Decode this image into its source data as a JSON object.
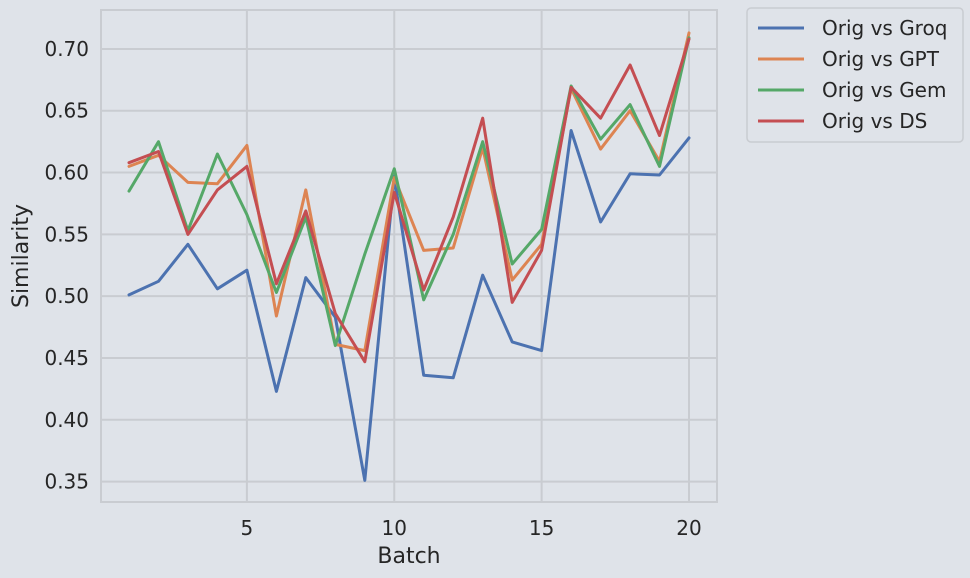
{
  "chart_data": {
    "type": "line",
    "xlabel": "Batch",
    "ylabel": "Similarity",
    "xlim": [
      0.05,
      20.95
    ],
    "ylim": [
      0.3335,
      0.7315
    ],
    "xticks": [
      5,
      10,
      15,
      20
    ],
    "yticks": [
      0.35,
      0.4,
      0.45,
      0.5,
      0.55,
      0.6,
      0.65,
      0.7
    ],
    "grid": true,
    "legend_position": "outside-top-right",
    "x": [
      1,
      2,
      3,
      4,
      5,
      6,
      7,
      8,
      9,
      10,
      11,
      12,
      13,
      14,
      15,
      16,
      17,
      18,
      19,
      20
    ],
    "series": [
      {
        "name": "Orig vs Groq",
        "color": "#4c72b0",
        "values": [
          0.501,
          0.512,
          0.542,
          0.506,
          0.521,
          0.423,
          0.515,
          0.483,
          0.351,
          0.597,
          0.436,
          0.434,
          0.517,
          0.463,
          0.456,
          0.634,
          0.56,
          0.599,
          0.598,
          0.628
        ]
      },
      {
        "name": "Orig vs GPT",
        "color": "#dd8452",
        "values": [
          0.605,
          0.614,
          0.592,
          0.591,
          0.622,
          0.484,
          0.586,
          0.461,
          0.456,
          0.596,
          0.537,
          0.539,
          0.62,
          0.513,
          0.542,
          0.668,
          0.619,
          0.65,
          0.609,
          0.713
        ]
      },
      {
        "name": "Orig vs Gem",
        "color": "#55a868",
        "values": [
          0.585,
          0.625,
          0.553,
          0.615,
          0.566,
          0.503,
          0.564,
          0.46,
          0.534,
          0.603,
          0.497,
          0.55,
          0.625,
          0.526,
          0.554,
          0.67,
          0.627,
          0.655,
          0.605,
          0.709
        ]
      },
      {
        "name": "Orig vs DS",
        "color": "#c44e52",
        "values": [
          0.608,
          0.617,
          0.55,
          0.586,
          0.605,
          0.51,
          0.569,
          0.486,
          0.447,
          0.584,
          0.505,
          0.564,
          0.644,
          0.495,
          0.537,
          0.669,
          0.644,
          0.687,
          0.63,
          0.708
        ]
      }
    ]
  }
}
